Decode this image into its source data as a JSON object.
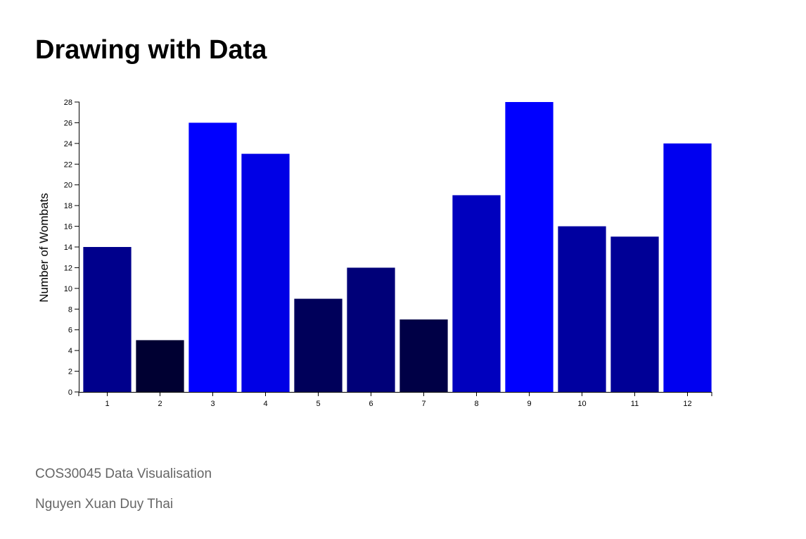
{
  "page": {
    "title": "Drawing with Data",
    "footer": {
      "course": "COS30045 Data Visualisation",
      "author": "Nguyen Xuan Duy Thai"
    }
  },
  "chart_data": {
    "type": "bar",
    "title": "",
    "xlabel": "",
    "ylabel": "Number of Wombats",
    "categories": [
      "1",
      "2",
      "3",
      "4",
      "5",
      "6",
      "7",
      "8",
      "9",
      "10",
      "11",
      "12"
    ],
    "values": [
      14,
      5,
      26,
      23,
      9,
      12,
      7,
      19,
      28,
      16,
      15,
      24
    ],
    "ylim": [
      0,
      28
    ],
    "yticks": [
      0,
      2,
      4,
      6,
      8,
      10,
      12,
      14,
      16,
      18,
      20,
      22,
      24,
      26,
      28
    ],
    "grid": false,
    "legend": "none",
    "bar_color_rule": "blue shade proportional to value (rgb(0,0,v*10))"
  }
}
